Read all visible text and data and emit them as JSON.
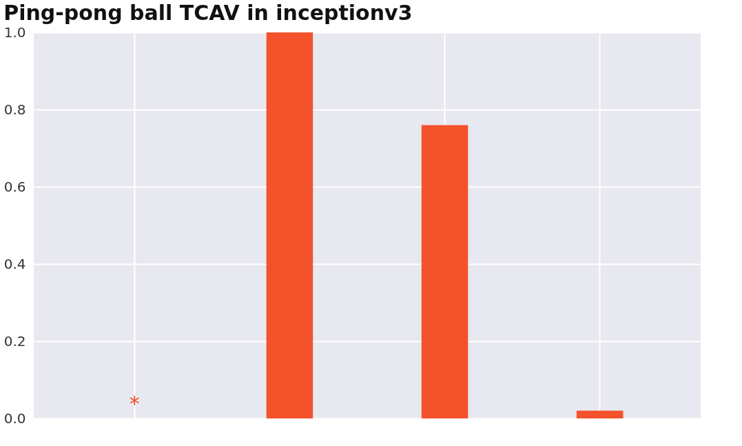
{
  "chart_data": {
    "type": "bar",
    "title": "Ping-pong ball TCAV in inceptionv3",
    "categories": [
      null,
      null,
      null,
      null
    ],
    "values": [
      0,
      1.0,
      0.76,
      0.02
    ],
    "color": "#f4522b",
    "ylim": [
      0,
      1.0
    ],
    "yticks": [
      {
        "value": 0,
        "label": "0.0"
      },
      0.2,
      0.4,
      0.6,
      0.8,
      {
        "value": 1,
        "label": "1.0"
      }
    ],
    "tick_labels": "y",
    "grid": true,
    "annotations": [
      "*"
    ]
  }
}
